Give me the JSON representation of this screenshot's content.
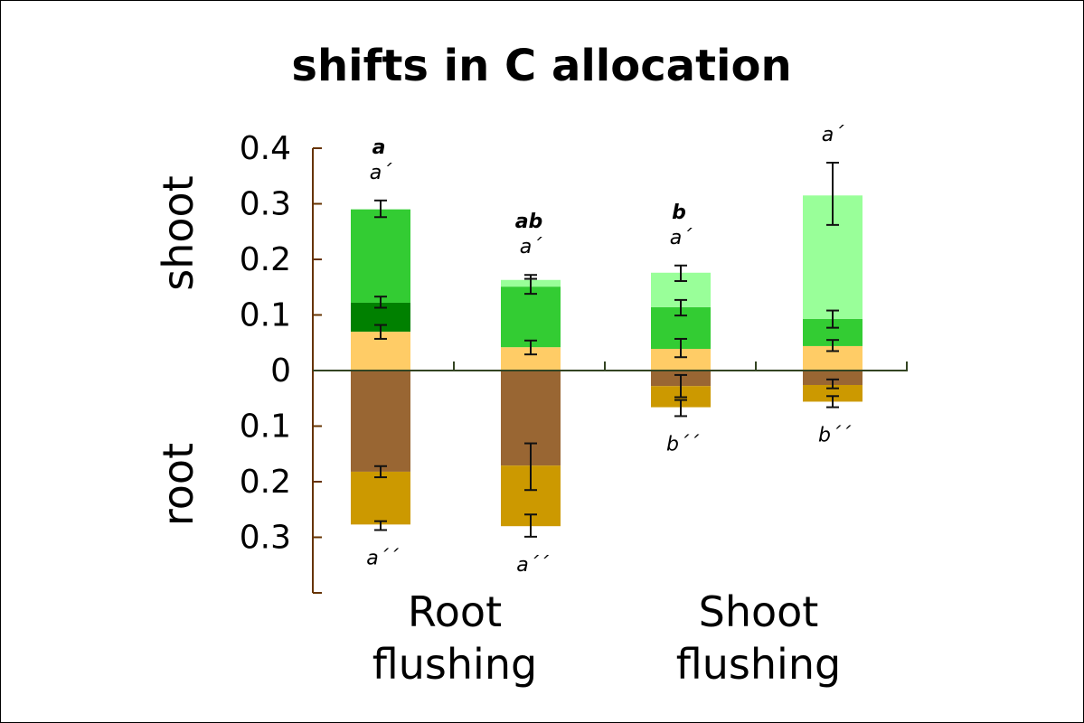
{
  "chart_data": {
    "type": "bar",
    "stacked": true,
    "diverging": true,
    "title": "shifts in C allocation",
    "ylabel_top": "shoot",
    "ylabel_bottom": "root",
    "ylim": [
      -0.4,
      0.4
    ],
    "yticks": [
      0.4,
      0.3,
      0.2,
      0.1,
      0,
      -0.1,
      -0.2,
      -0.3
    ],
    "ytick_labels": [
      "0.4",
      "0.3",
      "0.2",
      "0.1",
      "0",
      "0.1",
      "0.2",
      "0.3"
    ],
    "groups": [
      {
        "label_line1": "Root",
        "label_line2": "flushing"
      },
      {
        "label_line1": "Shoot",
        "label_line2": "flushing"
      }
    ],
    "grid": false,
    "bars": [
      {
        "shoot": [
          {
            "top": 0.07,
            "color": "#FFCC66",
            "error": [
              0.057,
              0.082
            ]
          },
          {
            "top": 0.122,
            "color": "#008000",
            "error": [
              0.113,
              0.133
            ]
          },
          {
            "top": 0.29,
            "color": "#33CC33",
            "error": [
              0.276,
              0.306
            ]
          }
        ],
        "root": [
          {
            "bottom": 0.182,
            "color": "#996633",
            "error": [
              0.172,
              0.192
            ]
          },
          {
            "bottom": 0.277,
            "color": "#CC9900",
            "error": [
              0.271,
              0.287
            ]
          }
        ],
        "letter_bold": "a",
        "letter_shoot": "a´",
        "letter_root": "a´´"
      },
      {
        "shoot": [
          {
            "top": 0.042,
            "color": "#FFCC66",
            "error": [
              0.029,
              0.054
            ]
          },
          {
            "top": 0.151,
            "color": "#33CC33",
            "error": [
              0.138,
              0.165
            ]
          },
          {
            "top": 0.163,
            "color": "#99FF99",
            "error": [
              0.165,
              0.172
            ]
          }
        ],
        "root": [
          {
            "bottom": 0.171,
            "color": "#996633",
            "error": [
              0.131,
              0.215
            ]
          },
          {
            "bottom": 0.28,
            "color": "#CC9900",
            "error": [
              0.259,
              0.299
            ]
          }
        ],
        "letter_bold": "ab",
        "letter_shoot": "a´",
        "letter_root": "a´´"
      },
      {
        "shoot": [
          {
            "top": 0.039,
            "color": "#FFCC66",
            "error": [
              0.024,
              0.057
            ]
          },
          {
            "top": 0.114,
            "color": "#33CC33",
            "error": [
              0.099,
              0.127
            ]
          },
          {
            "top": 0.176,
            "color": "#99FF99",
            "error": [
              0.161,
              0.189
            ]
          }
        ],
        "root": [
          {
            "bottom": 0.028,
            "color": "#996633",
            "error": [
              0.008,
              0.048
            ]
          },
          {
            "bottom": 0.066,
            "color": "#CC9900",
            "error": [
              0.053,
              0.082
            ]
          }
        ],
        "letter_bold": "b",
        "letter_shoot": "a´",
        "letter_root": "b´´"
      },
      {
        "shoot": [
          {
            "top": 0.044,
            "color": "#FFCC66",
            "error": [
              0.035,
              0.055
            ]
          },
          {
            "top": 0.093,
            "color": "#33CC33",
            "error": [
              0.077,
              0.108
            ]
          },
          {
            "top": 0.315,
            "color": "#99FF99",
            "error": [
              0.262,
              0.374
            ]
          }
        ],
        "root": [
          {
            "bottom": 0.026,
            "color": "#996633",
            "error": [
              0.016,
              0.032
            ]
          },
          {
            "bottom": 0.056,
            "color": "#CC9900",
            "error": [
              0.046,
              0.066
            ]
          }
        ],
        "letter_bold": "",
        "letter_shoot": "a´",
        "letter_root": "b´´"
      }
    ]
  }
}
